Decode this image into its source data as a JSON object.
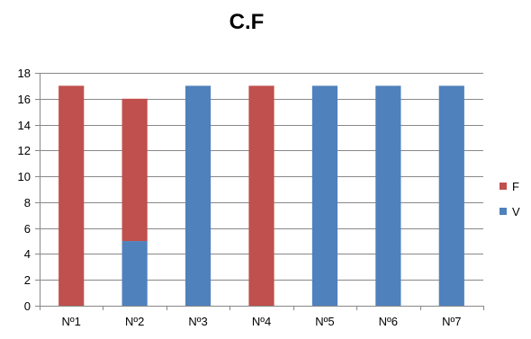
{
  "chart_data": {
    "type": "bar",
    "stacked": true,
    "title": "C.F",
    "xlabel": "",
    "ylabel": "",
    "categories": [
      "Nº1",
      "Nº2",
      "Nº3",
      "Nº4",
      "Nº5",
      "Nº6",
      "Nº7"
    ],
    "series": [
      {
        "name": "V",
        "color": "#4F81BD",
        "values": [
          0,
          5,
          17,
          0,
          17,
          17,
          17
        ]
      },
      {
        "name": "F",
        "color": "#C0504D",
        "values": [
          17,
          11,
          0,
          17,
          0,
          0,
          0
        ]
      }
    ],
    "ylim": [
      0,
      18
    ],
    "yticks": [
      0,
      2,
      4,
      6,
      8,
      10,
      12,
      14,
      16,
      18
    ],
    "grid": true,
    "legend_position": "right",
    "legend_order": [
      "F",
      "V"
    ]
  }
}
